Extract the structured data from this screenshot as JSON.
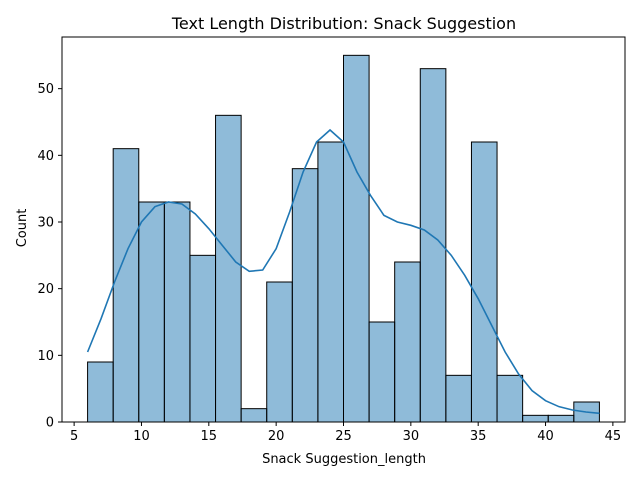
{
  "chart_data": {
    "type": "bar",
    "subtype": "histogram",
    "title": "Text Length Distribution: Snack Suggestion",
    "xlabel": "Snack Suggestion_length",
    "ylabel": "Count",
    "xlim": [
      4.1,
      45.9
    ],
    "ylim": [
      0,
      57.75
    ],
    "xticks": [
      5,
      10,
      15,
      20,
      25,
      30,
      35,
      40,
      45
    ],
    "yticks": [
      0,
      10,
      20,
      30,
      40,
      50
    ],
    "bin_edges": [
      6.0,
      7.9,
      9.8,
      11.7,
      13.6,
      15.5,
      17.4,
      19.3,
      21.2,
      23.1,
      25.0,
      26.9,
      28.8,
      30.7,
      32.6,
      34.5,
      36.4,
      38.3,
      40.2,
      42.1,
      44.0
    ],
    "counts": [
      9,
      41,
      33,
      33,
      25,
      46,
      2,
      21,
      38,
      42,
      55,
      15,
      24,
      53,
      7,
      42,
      7,
      1,
      1,
      3
    ],
    "kde": {
      "x": [
        6,
        7,
        8,
        9,
        10,
        11,
        12,
        13,
        14,
        15,
        16,
        17,
        18,
        19,
        20,
        21,
        22,
        23,
        24,
        25,
        26,
        27,
        28,
        29,
        30,
        31,
        32,
        33,
        34,
        35,
        36,
        37,
        38,
        39,
        40,
        41,
        42,
        43,
        44
      ],
      "y": [
        10.5,
        15.5,
        21,
        26,
        30,
        32.3,
        33,
        32.7,
        31.2,
        29,
        26.5,
        24,
        22.6,
        22.8,
        26,
        31.5,
        37.5,
        42,
        43.8,
        42,
        37.5,
        34,
        31,
        30,
        29.5,
        28.8,
        27.3,
        25,
        22,
        18.5,
        14.5,
        10.5,
        7.2,
        4.7,
        3.2,
        2.3,
        1.8,
        1.5,
        1.3
      ]
    },
    "grid": false,
    "colors": {
      "bar_fill": "#1f77b4",
      "bar_fill_opacity": 0.5,
      "bar_edge": "#000000",
      "kde_line": "#1f77b4"
    }
  }
}
